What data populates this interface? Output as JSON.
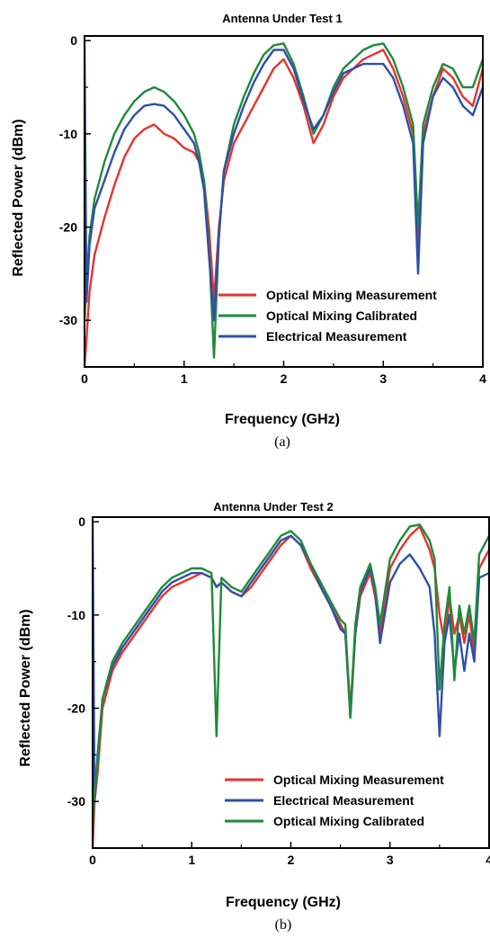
{
  "colors": {
    "optical_measurement": "#e8322d",
    "optical_calibrated": "#1f8a3b",
    "electrical": "#2f4fa8"
  },
  "chart_data": [
    {
      "type": "line",
      "title": "Antenna Under Test 1",
      "xlabel": "Frequency (GHz)",
      "ylabel": "Reflected Power (dBm)",
      "caption": "(a)",
      "xlim": [
        0,
        4
      ],
      "ylim": [
        -35,
        0.5
      ],
      "xticks": [
        0,
        1,
        2,
        3,
        4
      ],
      "xtick_labels": [
        "0",
        "1",
        "2",
        "3",
        "4"
      ],
      "yticks": [
        0,
        -10,
        -20,
        -30
      ],
      "ytick_labels": [
        "0",
        "-10",
        "-20",
        "-30"
      ],
      "legend_position": "bottom-right",
      "legend": [
        "Optical Mixing Measurement",
        "Optical Mixing Calibrated",
        "Electrical Measurement"
      ],
      "series": [
        {
          "name": "Optical Mixing Measurement",
          "color": "#e8322d",
          "x": [
            0.0,
            0.02,
            0.05,
            0.1,
            0.2,
            0.3,
            0.4,
            0.5,
            0.6,
            0.7,
            0.8,
            0.9,
            1.0,
            1.1,
            1.15,
            1.2,
            1.25,
            1.3,
            1.35,
            1.4,
            1.5,
            1.6,
            1.7,
            1.8,
            1.9,
            2.0,
            2.1,
            2.2,
            2.3,
            2.4,
            2.5,
            2.6,
            2.7,
            2.8,
            2.9,
            3.0,
            3.1,
            3.2,
            3.3,
            3.35,
            3.4,
            3.5,
            3.6,
            3.7,
            3.8,
            3.9,
            4.0
          ],
          "y": [
            -35,
            -32,
            -27,
            -23,
            -19,
            -15.5,
            -12.5,
            -10.5,
            -9.5,
            -9,
            -10,
            -10.5,
            -11.5,
            -12,
            -13,
            -15,
            -20,
            -28,
            -20,
            -15,
            -11,
            -9,
            -7,
            -5,
            -3,
            -2,
            -4,
            -7,
            -11,
            -9,
            -6,
            -4,
            -3,
            -2,
            -1.5,
            -1,
            -3,
            -6,
            -10,
            -22,
            -10,
            -6,
            -3,
            -4,
            -6,
            -7,
            -3
          ]
        },
        {
          "name": "Optical Mixing Calibrated",
          "color": "#1f8a3b",
          "x": [
            0.0,
            0.02,
            0.05,
            0.1,
            0.2,
            0.3,
            0.4,
            0.5,
            0.6,
            0.7,
            0.8,
            0.9,
            1.0,
            1.1,
            1.15,
            1.2,
            1.25,
            1.3,
            1.35,
            1.4,
            1.5,
            1.6,
            1.7,
            1.8,
            1.9,
            2.0,
            2.1,
            2.2,
            2.3,
            2.4,
            2.5,
            2.6,
            2.7,
            2.8,
            2.9,
            3.0,
            3.1,
            3.2,
            3.3,
            3.35,
            3.4,
            3.5,
            3.6,
            3.7,
            3.8,
            3.9,
            4.0
          ],
          "y": [
            -30,
            -26,
            -21,
            -17,
            -13,
            -10,
            -8,
            -6.5,
            -5.5,
            -5,
            -5.5,
            -6.5,
            -8,
            -10,
            -12,
            -15,
            -22,
            -34,
            -21,
            -14,
            -9,
            -6,
            -3.5,
            -1.5,
            -0.5,
            -0.3,
            -2.5,
            -6,
            -10,
            -8,
            -5,
            -3,
            -2,
            -1,
            -0.5,
            -0.3,
            -2,
            -5,
            -9,
            -20,
            -9,
            -5,
            -2.5,
            -3,
            -5,
            -5,
            -2
          ]
        },
        {
          "name": "Electrical Measurement",
          "color": "#2f4fa8",
          "x": [
            0.0,
            0.02,
            0.05,
            0.1,
            0.2,
            0.3,
            0.4,
            0.5,
            0.6,
            0.7,
            0.8,
            0.9,
            1.0,
            1.1,
            1.15,
            1.2,
            1.25,
            1.3,
            1.35,
            1.4,
            1.5,
            1.6,
            1.7,
            1.8,
            1.9,
            2.0,
            2.1,
            2.2,
            2.3,
            2.4,
            2.5,
            2.6,
            2.7,
            2.8,
            2.9,
            3.0,
            3.1,
            3.2,
            3.3,
            3.35,
            3.4,
            3.5,
            3.6,
            3.7,
            3.8,
            3.9,
            4.0
          ],
          "y": [
            0,
            -28,
            -22,
            -18,
            -15,
            -12,
            -9.5,
            -8,
            -7,
            -6.8,
            -7,
            -8,
            -9.5,
            -11,
            -13,
            -16,
            -23,
            -30,
            -21,
            -14,
            -10,
            -7,
            -4.5,
            -2.5,
            -1,
            -1,
            -3,
            -6.5,
            -9.5,
            -8,
            -5.5,
            -3.5,
            -3,
            -2.5,
            -2.5,
            -2.5,
            -4,
            -7,
            -11,
            -25,
            -11,
            -6,
            -4,
            -5,
            -7,
            -8,
            -5
          ]
        }
      ]
    },
    {
      "type": "line",
      "title": "Antenna Under Test 2",
      "xlabel": "Frequency (GHz)",
      "ylabel": "Reflected Power (dBm)",
      "caption": "(b)",
      "xlim": [
        0,
        4
      ],
      "ylim": [
        -35,
        0.5
      ],
      "xticks": [
        0,
        1,
        2,
        3,
        4
      ],
      "xtick_labels": [
        "0",
        "1",
        "2",
        "3",
        "4"
      ],
      "yticks": [
        0,
        -10,
        -20,
        -30
      ],
      "ytick_labels": [
        "0",
        "-10",
        "-20",
        "-30"
      ],
      "legend_position": "bottom-right",
      "legend": [
        "Optical Mixing Measurement",
        "Electrical Measurement",
        "Optical Mixing Calibrated"
      ],
      "series": [
        {
          "name": "Optical Mixing Measurement",
          "color": "#e8322d",
          "x": [
            0.0,
            0.02,
            0.05,
            0.1,
            0.2,
            0.3,
            0.4,
            0.5,
            0.6,
            0.7,
            0.8,
            0.9,
            1.0,
            1.1,
            1.2,
            1.25,
            1.3,
            1.4,
            1.5,
            1.6,
            1.7,
            1.8,
            1.9,
            2.0,
            2.1,
            2.2,
            2.3,
            2.4,
            2.5,
            2.55,
            2.6,
            2.65,
            2.7,
            2.8,
            2.85,
            2.9,
            3.0,
            3.1,
            3.2,
            3.3,
            3.4,
            3.45,
            3.5,
            3.55,
            3.6,
            3.65,
            3.7,
            3.75,
            3.8,
            3.85,
            3.9,
            4.0
          ],
          "y": [
            -35,
            -30,
            -27,
            -20,
            -16,
            -14,
            -12.5,
            -11,
            -9.5,
            -8,
            -7,
            -6.5,
            -6,
            -5.5,
            -6,
            -7,
            -6.5,
            -7.5,
            -8,
            -7,
            -5.5,
            -4,
            -2.5,
            -1.5,
            -2.5,
            -5,
            -7,
            -9,
            -11,
            -12,
            -20,
            -12,
            -8,
            -5.5,
            -8,
            -12,
            -5,
            -3,
            -1.5,
            -0.5,
            -3,
            -5,
            -10,
            -13,
            -8,
            -12,
            -10,
            -13,
            -10,
            -14,
            -5,
            -3
          ]
        },
        {
          "name": "Electrical Measurement",
          "color": "#2f4fa8",
          "x": [
            0.0,
            0.02,
            0.05,
            0.1,
            0.2,
            0.3,
            0.4,
            0.5,
            0.6,
            0.7,
            0.8,
            0.9,
            1.0,
            1.1,
            1.2,
            1.25,
            1.3,
            1.4,
            1.5,
            1.6,
            1.7,
            1.8,
            1.9,
            2.0,
            2.1,
            2.2,
            2.3,
            2.4,
            2.5,
            2.55,
            2.6,
            2.65,
            2.7,
            2.8,
            2.85,
            2.9,
            3.0,
            3.1,
            3.2,
            3.3,
            3.4,
            3.45,
            3.5,
            3.55,
            3.6,
            3.65,
            3.7,
            3.75,
            3.8,
            3.85,
            3.9,
            4.0
          ],
          "y": [
            0,
            -30,
            -25,
            -19,
            -15.5,
            -13.5,
            -12,
            -10.5,
            -9,
            -7.5,
            -6.5,
            -6,
            -5.5,
            -5.5,
            -6,
            -7,
            -6.5,
            -7.5,
            -8,
            -6.5,
            -5,
            -3.5,
            -2,
            -1.5,
            -2.5,
            -4.5,
            -7,
            -9,
            -11.5,
            -12,
            -21,
            -12,
            -7.5,
            -5,
            -7.5,
            -13,
            -6.5,
            -4.5,
            -3.5,
            -5,
            -7,
            -12,
            -23,
            -13,
            -10,
            -16,
            -12,
            -16,
            -12,
            -15,
            -6,
            -5.5
          ]
        },
        {
          "name": "Optical Mixing Calibrated",
          "color": "#1f8a3b",
          "x": [
            0.0,
            0.02,
            0.05,
            0.1,
            0.2,
            0.3,
            0.4,
            0.5,
            0.6,
            0.7,
            0.8,
            0.9,
            1.0,
            1.1,
            1.2,
            1.25,
            1.3,
            1.4,
            1.5,
            1.6,
            1.7,
            1.8,
            1.9,
            2.0,
            2.1,
            2.2,
            2.3,
            2.4,
            2.5,
            2.55,
            2.6,
            2.65,
            2.7,
            2.8,
            2.85,
            2.9,
            3.0,
            3.1,
            3.2,
            3.3,
            3.4,
            3.45,
            3.5,
            3.55,
            3.6,
            3.65,
            3.7,
            3.75,
            3.8,
            3.85,
            3.9,
            4.0
          ],
          "y": [
            -33,
            -29,
            -26,
            -19,
            -15,
            -13,
            -11.5,
            -10,
            -8.5,
            -7,
            -6,
            -5.5,
            -5,
            -5,
            -5.5,
            -23,
            -6,
            -7,
            -7.5,
            -6,
            -4.5,
            -3,
            -1.5,
            -1,
            -2,
            -4.5,
            -6.5,
            -8.5,
            -10.5,
            -11,
            -21,
            -11,
            -7,
            -4.5,
            -7,
            -11,
            -4,
            -2,
            -0.5,
            -0.3,
            -2,
            -4,
            -18,
            -11,
            -7,
            -17,
            -9,
            -12,
            -9,
            -13,
            -3.5,
            -1.5
          ]
        }
      ]
    }
  ]
}
